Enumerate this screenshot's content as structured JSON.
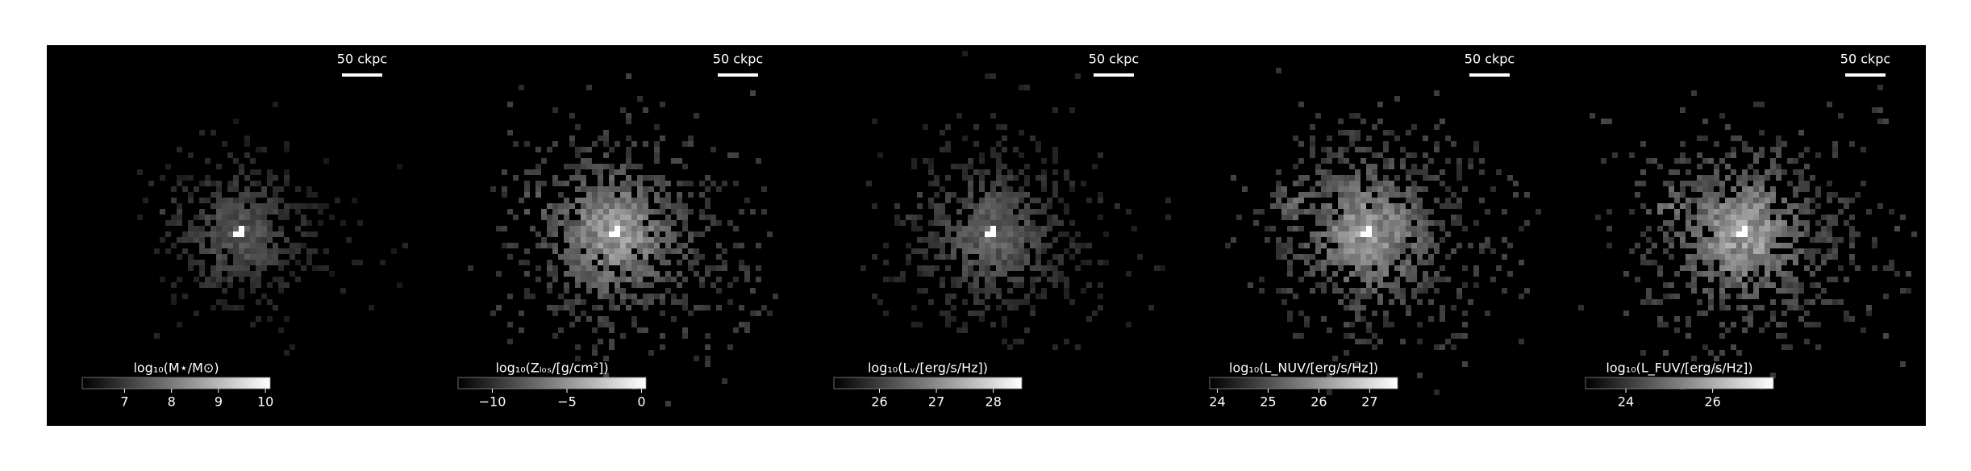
{
  "panels": [
    {
      "scale_bar": "50 ckpc",
      "colorbar_label": "log₁₀(M⋆/M⊙)",
      "clim": [
        6.1,
        10.1
      ],
      "cticks": [
        7,
        8,
        9,
        10
      ]
    },
    {
      "scale_bar": "50 ckpc",
      "colorbar_label": "log₁₀(Zₗₒₛ/[g/cm²])",
      "clim": [
        -12.3,
        0.3
      ],
      "cticks": [
        {
          "value": -10,
          "label": "−10"
        },
        {
          "value": -5,
          "label": "−5"
        },
        0
      ]
    },
    {
      "scale_bar": "50 ckpc",
      "colorbar_label": "log₁₀(Lᵥ/[erg/s/Hz])",
      "clim": [
        25.2,
        28.5
      ],
      "cticks": [
        26,
        27,
        28
      ]
    },
    {
      "scale_bar": "50 ckpc",
      "colorbar_label": "log₁₀(L_NUV/[erg/s/Hz])",
      "clim": [
        23.85,
        27.55
      ],
      "cticks": [
        24,
        25,
        26,
        27
      ]
    },
    {
      "scale_bar": "50 ckpc",
      "colorbar_label": "log₁₀(L_FUV/[erg/s/Hz])",
      "clim": [
        23.07,
        27.4
      ],
      "cticks": [
        24,
        26
      ]
    }
  ]
}
